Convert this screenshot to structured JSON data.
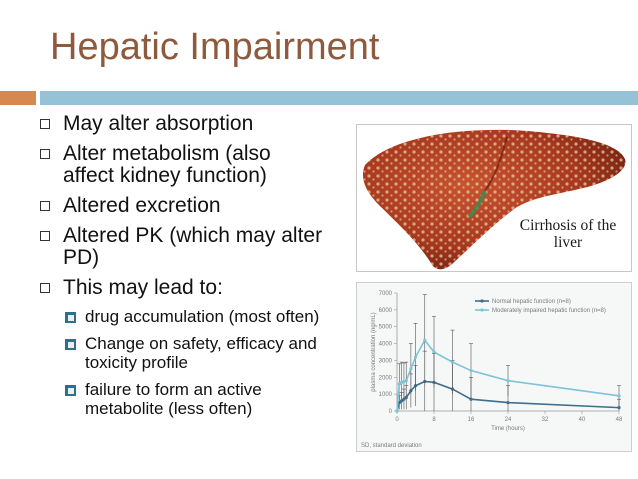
{
  "slide": {
    "title": "Hepatic Impairment",
    "bullets": [
      {
        "text": "May alter absorption"
      },
      {
        "text": "Alter metabolism (also affect kidney function)"
      },
      {
        "text": "Altered excretion"
      },
      {
        "text": "Altered PK (which may alter PD)"
      },
      {
        "text": "This may lead to:"
      }
    ],
    "sub_bullets": [
      {
        "text": "drug accumulation (most often)"
      },
      {
        "text": "Change on safety, efficacy and toxicity profile"
      },
      {
        "text": "failure to form an active metabolite (less often)"
      }
    ]
  },
  "image": {
    "caption": "Cirrhosis of the liver"
  },
  "chart_data": {
    "type": "line",
    "ylabel": "plasma concentration (ng/mL)",
    "xlabel": "Time (hours)",
    "xlim": [
      0,
      48
    ],
    "ylim": [
      0,
      7000
    ],
    "x_ticks": [
      0,
      8,
      16,
      24,
      32,
      40,
      48
    ],
    "y_ticks": [
      0,
      1000,
      2000,
      3000,
      4000,
      5000,
      6000,
      7000
    ],
    "footnote": "SD, standard deviation",
    "series": [
      {
        "name": "Normal hepatic function (n=8)",
        "color": "#3f6f8c",
        "x": [
          0,
          0.5,
          1,
          1.5,
          2,
          3,
          4,
          6,
          8,
          12,
          16,
          24,
          48
        ],
        "y": [
          0,
          500,
          600,
          700,
          800,
          1200,
          1500,
          1750,
          1700,
          1300,
          700,
          500,
          200
        ],
        "error": [
          0,
          400,
          500,
          600,
          700,
          1000,
          1200,
          1800,
          1700,
          1700,
          1300,
          1000,
          500
        ]
      },
      {
        "name": "Moderately impaired hepatic function (n=8)",
        "color": "#7ec4d8",
        "x": [
          0,
          0.5,
          1,
          1.5,
          2,
          3,
          4,
          6,
          8,
          12,
          16,
          24,
          48
        ],
        "y": [
          0,
          1600,
          1700,
          1750,
          1800,
          2500,
          3200,
          4200,
          3500,
          2900,
          2400,
          1800,
          900
        ],
        "error": [
          0,
          1200,
          1200,
          1100,
          1100,
          1500,
          2000,
          2700,
          2100,
          1900,
          1600,
          900,
          600
        ]
      }
    ],
    "legend_position": "top-right"
  }
}
